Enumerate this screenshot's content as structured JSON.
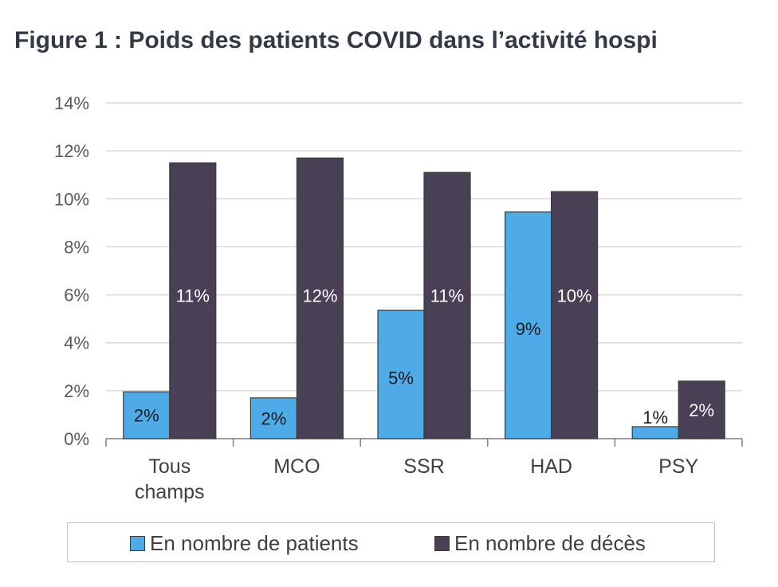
{
  "page_title": "Figure 1 : Poids des patients COVID dans l’activité hospi",
  "colors": {
    "patients": "#4eabe8",
    "deces": "#4a4055",
    "grid": "#d9d9d9",
    "axis": "#7f7f7f"
  },
  "chart_data": {
    "type": "bar",
    "categories": [
      [
        "Tous",
        "champs"
      ],
      [
        "MCO"
      ],
      [
        "SSR"
      ],
      [
        "HAD"
      ],
      [
        "PSY"
      ]
    ],
    "series": [
      {
        "name": "En nombre de patients",
        "values": [
          1.95,
          1.7,
          5.35,
          9.45,
          0.5
        ],
        "labels": [
          "2%",
          "2%",
          "5%",
          "9%",
          "1%"
        ]
      },
      {
        "name": "En nombre de décès",
        "values": [
          11.5,
          11.7,
          11.1,
          10.3,
          2.4
        ],
        "labels": [
          "11%",
          "12%",
          "11%",
          "10%",
          "2%"
        ]
      }
    ],
    "ylim": [
      0,
      14
    ],
    "yticks": [
      "0%",
      "2%",
      "4%",
      "6%",
      "8%",
      "10%",
      "12%",
      "14%"
    ],
    "grid": true,
    "legend_position": "bottom",
    "xlabel": "",
    "ylabel": ""
  }
}
